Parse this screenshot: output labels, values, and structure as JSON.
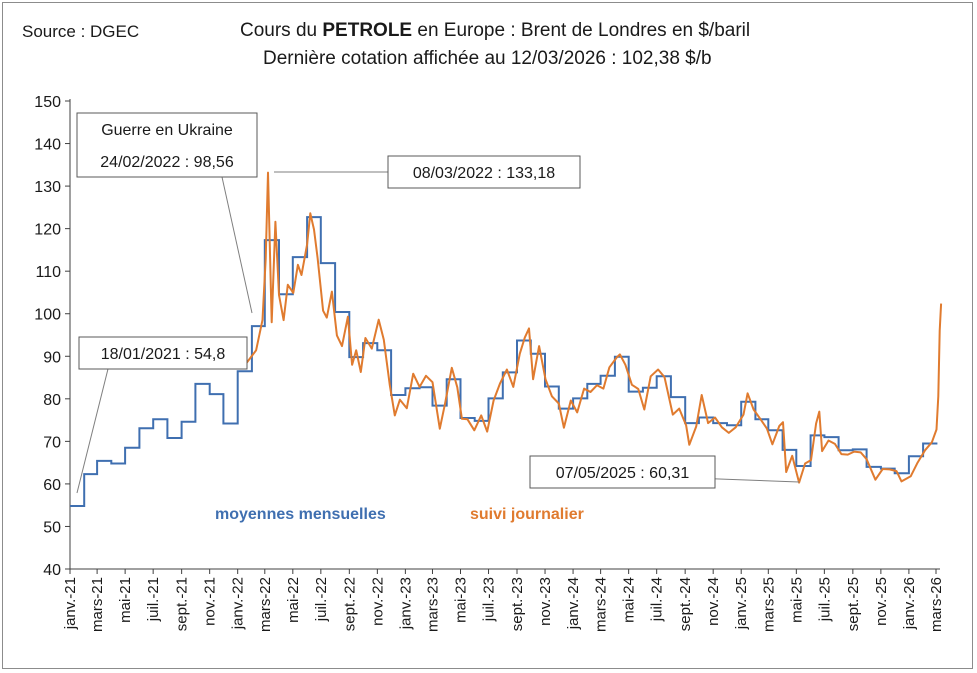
{
  "header": {
    "source": "Source : DGEC",
    "title_pre": "Cours du ",
    "title_bold": "PETROLE",
    "title_post": " en Europe : Brent de Londres en $/baril",
    "title_line2": "Dernière cotation affichée au 12/03/2026 : 102,38 $/b"
  },
  "chart_data": {
    "type": "line",
    "title": "Cours du PETROLE en Europe : Brent de Londres en $/baril",
    "subtitle": "Dernière cotation affichée au 12/03/2026 : 102,38 $/b",
    "ylim": [
      40,
      150
    ],
    "yticks": [
      40,
      50,
      60,
      70,
      80,
      90,
      100,
      110,
      120,
      130,
      140,
      150
    ],
    "x_range": [
      "2021-01",
      "2026-03"
    ],
    "xtick_labels": [
      "janv.-21",
      "mars-21",
      "mai-21",
      "juil.-21",
      "sept.-21",
      "nov.-21",
      "janv.-22",
      "mars-22",
      "mai-22",
      "juil.-22",
      "sept.-22",
      "nov.-22",
      "janv.-23",
      "mars-23",
      "mai-23",
      "juil.-23",
      "sept.-23",
      "nov.-23",
      "janv.-24",
      "mars-24",
      "mai-24",
      "juil.-24",
      "sept.-24",
      "nov.-24",
      "janv.-25",
      "mars-25",
      "mai-25",
      "juil.-25",
      "sept.-25",
      "nov.-25",
      "janv.-26",
      "mars-26"
    ],
    "grid": false,
    "series": [
      {
        "name": "moyennes mensuelles",
        "color": "#3f6fb0",
        "step": true,
        "x": [
          "2021-01",
          "2021-02",
          "2021-03",
          "2021-04",
          "2021-05",
          "2021-06",
          "2021-07",
          "2021-08",
          "2021-09",
          "2021-10",
          "2021-11",
          "2021-12",
          "2022-01",
          "2022-02",
          "2022-03",
          "2022-04",
          "2022-05",
          "2022-06",
          "2022-07",
          "2022-08",
          "2022-09",
          "2022-10",
          "2022-11",
          "2022-12",
          "2023-01",
          "2023-02",
          "2023-03",
          "2023-04",
          "2023-05",
          "2023-06",
          "2023-07",
          "2023-08",
          "2023-09",
          "2023-10",
          "2023-11",
          "2023-12",
          "2024-01",
          "2024-02",
          "2024-03",
          "2024-04",
          "2024-05",
          "2024-06",
          "2024-07",
          "2024-08",
          "2024-09",
          "2024-10",
          "2024-11",
          "2024-12",
          "2025-01",
          "2025-02",
          "2025-03",
          "2025-04",
          "2025-05",
          "2025-06",
          "2025-07",
          "2025-08",
          "2025-09",
          "2025-10",
          "2025-11",
          "2025-12",
          "2026-01",
          "2026-02"
        ],
        "values": [
          54.8,
          62.3,
          65.4,
          64.8,
          68.5,
          73.1,
          75.2,
          70.8,
          74.6,
          83.5,
          81.1,
          74.2,
          86.5,
          97.1,
          117.3,
          104.6,
          113.3,
          122.7,
          111.9,
          100.4,
          89.8,
          93.1,
          91.4,
          80.9,
          82.5,
          82.7,
          78.4,
          84.6,
          75.5,
          74.8,
          80.1,
          86.2,
          93.7,
          90.6,
          82.9,
          77.7,
          80.1,
          83.5,
          85.4,
          89.9,
          81.7,
          82.6,
          85.3,
          80.4,
          74.3,
          75.6,
          74.3,
          73.8,
          79.3,
          75.2,
          72.6,
          68.0,
          64.2,
          71.4,
          71.0,
          67.9,
          68.1,
          64.0,
          63.6,
          62.5,
          66.5,
          69.5
        ]
      },
      {
        "name": "suivi journalier",
        "color": "#e07b2f",
        "step": false,
        "x": [
          "2022-01-20",
          "2022-02-10",
          "2022-02-24",
          "2022-03-03",
          "2022-03-08",
          "2022-03-16",
          "2022-03-24",
          "2022-04-01",
          "2022-04-11",
          "2022-04-20",
          "2022-05-02",
          "2022-05-12",
          "2022-05-20",
          "2022-06-01",
          "2022-06-08",
          "2022-06-16",
          "2022-06-24",
          "2022-07-06",
          "2022-07-14",
          "2022-07-25",
          "2022-08-05",
          "2022-08-16",
          "2022-08-29",
          "2022-09-07",
          "2022-09-16",
          "2022-09-26",
          "2022-10-06",
          "2022-10-20",
          "2022-11-04",
          "2022-11-15",
          "2022-11-28",
          "2022-12-09",
          "2022-12-20",
          "2023-01-04",
          "2023-01-18",
          "2023-02-01",
          "2023-02-15",
          "2023-03-01",
          "2023-03-17",
          "2023-03-28",
          "2023-04-12",
          "2023-04-24",
          "2023-05-04",
          "2023-05-16",
          "2023-05-31",
          "2023-06-15",
          "2023-06-28",
          "2023-07-12",
          "2023-07-26",
          "2023-08-10",
          "2023-08-24",
          "2023-09-07",
          "2023-09-18",
          "2023-09-27",
          "2023-10-06",
          "2023-10-19",
          "2023-11-02",
          "2023-11-16",
          "2023-12-01",
          "2023-12-12",
          "2023-12-27",
          "2024-01-10",
          "2024-01-25",
          "2024-02-08",
          "2024-02-22",
          "2024-03-07",
          "2024-03-20",
          "2024-04-05",
          "2024-04-12",
          "2024-04-24",
          "2024-05-08",
          "2024-05-22",
          "2024-06-04",
          "2024-06-18",
          "2024-07-04",
          "2024-07-18",
          "2024-08-05",
          "2024-08-19",
          "2024-09-03",
          "2024-09-10",
          "2024-09-25",
          "2024-10-07",
          "2024-10-21",
          "2024-11-05",
          "2024-11-20",
          "2024-12-05",
          "2024-12-20",
          "2025-01-06",
          "2025-01-15",
          "2025-01-28",
          "2025-02-12",
          "2025-02-26",
          "2025-03-10",
          "2025-03-25",
          "2025-04-02",
          "2025-04-09",
          "2025-04-22",
          "2025-05-07",
          "2025-05-20",
          "2025-06-02",
          "2025-06-13",
          "2025-06-20",
          "2025-06-26",
          "2025-07-10",
          "2025-07-24",
          "2025-08-07",
          "2025-08-21",
          "2025-09-04",
          "2025-09-18",
          "2025-10-01",
          "2025-10-20",
          "2025-11-05",
          "2025-11-20",
          "2025-12-05",
          "2025-12-16",
          "2026-01-05",
          "2026-01-20",
          "2026-02-05",
          "2026-02-20",
          "2026-03-02",
          "2026-03-06",
          "2026-03-09",
          "2026-03-12"
        ],
        "values": [
          88.4,
          91.4,
          98.56,
          112.9,
          133.18,
          98.0,
          121.6,
          104.4,
          98.5,
          106.8,
          104.9,
          111.5,
          109.1,
          116.3,
          123.6,
          119.8,
          113.1,
          100.7,
          99.1,
          105.2,
          94.9,
          92.4,
          99.3,
          88.0,
          91.4,
          86.3,
          94.3,
          91.8,
          98.6,
          93.9,
          83.2,
          76.1,
          79.8,
          77.8,
          85.9,
          82.8,
          85.4,
          83.9,
          72.97,
          78.7,
          87.3,
          82.7,
          75.3,
          75.2,
          72.6,
          76.1,
          72.3,
          79.6,
          83.6,
          86.9,
          82.8,
          90.6,
          94.4,
          96.55,
          84.6,
          92.4,
          84.6,
          80.6,
          78.9,
          73.2,
          79.6,
          76.8,
          82.4,
          81.6,
          83.2,
          82.4,
          87.4,
          89.7,
          90.45,
          88.0,
          83.3,
          82.3,
          77.5,
          85.3,
          86.9,
          85.1,
          76.3,
          77.7,
          73.8,
          69.2,
          73.5,
          80.9,
          74.3,
          75.6,
          73.3,
          72.0,
          73.3,
          76.3,
          81.3,
          77.5,
          75.2,
          73.0,
          69.3,
          73.6,
          74.5,
          62.8,
          66.6,
          60.31,
          64.8,
          65.6,
          74.2,
          77.0,
          67.7,
          70.2,
          69.4,
          67.0,
          66.9,
          67.6,
          67.4,
          65.8,
          61.0,
          63.5,
          63.4,
          63.0,
          60.6,
          61.8,
          65.0,
          67.9,
          69.8,
          72.8,
          80.6,
          96.0,
          102.38
        ]
      }
    ],
    "legend": [
      {
        "label": "moyennes mensuelles",
        "color": "#3f6fb0",
        "placement": "bottom-left"
      },
      {
        "label": "suivi journalier",
        "color": "#e07b2f",
        "placement": "bottom-center"
      }
    ],
    "annotations": [
      {
        "text_lines": [
          "18/01/2021 : 54,8"
        ],
        "date": "2021-01-18",
        "value": 54.8
      },
      {
        "text_lines": [
          "Guerre en Ukraine",
          "24/02/2022 : 98,56"
        ],
        "date": "2022-02-24",
        "value": 98.56
      },
      {
        "text_lines": [
          "08/03/2022 : 133,18"
        ],
        "date": "2022-03-08",
        "value": 133.18
      },
      {
        "text_lines": [
          "07/05/2025 : 60,31"
        ],
        "date": "2025-05-07",
        "value": 60.31
      }
    ]
  }
}
